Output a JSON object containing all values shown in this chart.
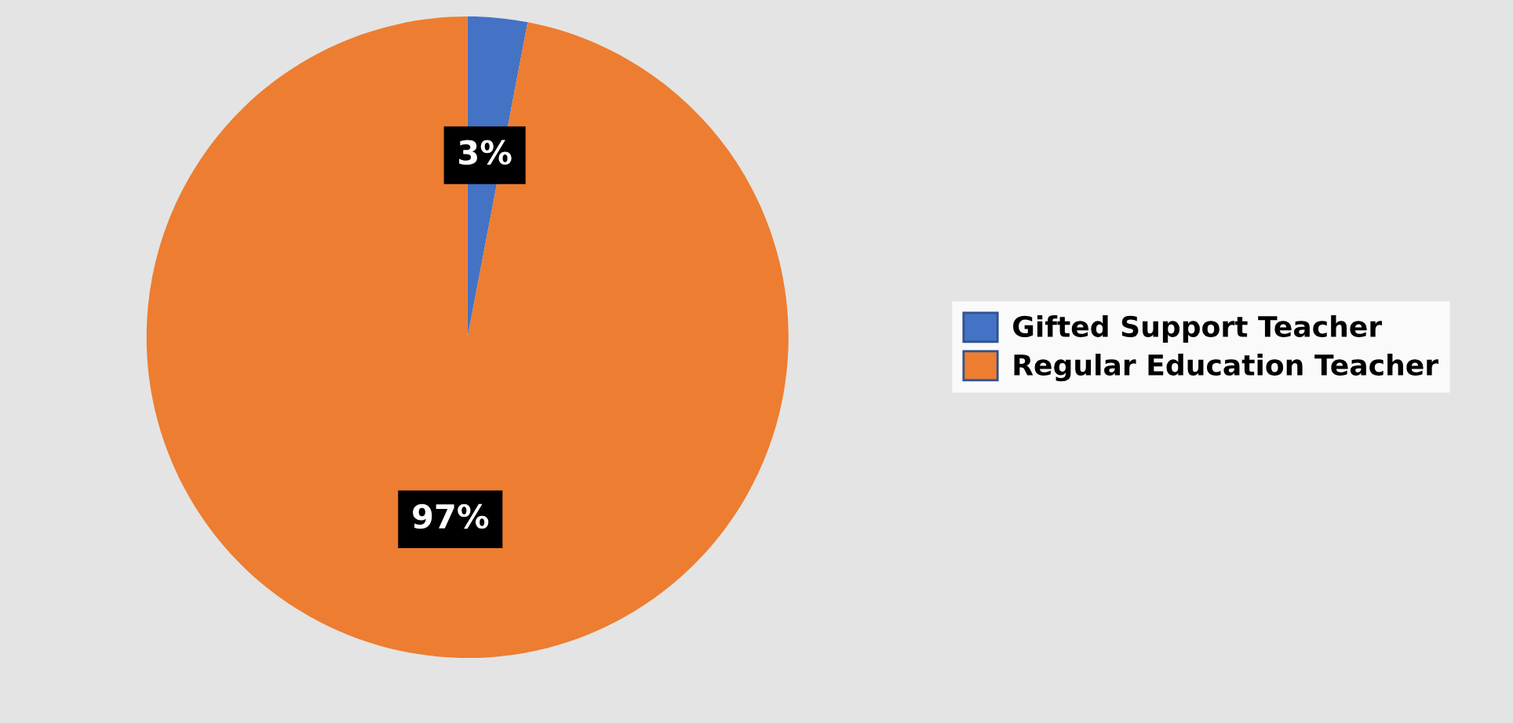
{
  "chart_data": {
    "type": "pie",
    "categories": [
      "Gifted Support Teacher",
      "Regular Education Teacher"
    ],
    "values": [
      3,
      97
    ],
    "value_labels": [
      "3%",
      "97%"
    ],
    "colors": [
      "#4472c4",
      "#ed7d31"
    ],
    "legend": "right"
  }
}
